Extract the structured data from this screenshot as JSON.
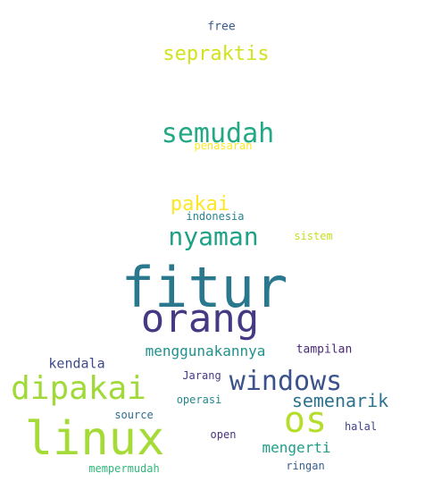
{
  "words": [
    {
      "text": "fitur",
      "color": "#2a788e"
    },
    {
      "text": "orang",
      "color": "#443a83"
    },
    {
      "text": "linux",
      "color": "#a5db36"
    },
    {
      "text": "dipakai",
      "color": "#a0da39"
    },
    {
      "text": "os",
      "color": "#b5de2b"
    },
    {
      "text": "windows",
      "color": "#3b528b"
    },
    {
      "text": "semudah",
      "color": "#22a884"
    },
    {
      "text": "nyaman",
      "color": "#1fa188"
    },
    {
      "text": "sepraktis",
      "color": "#d2e21b"
    },
    {
      "text": "semenarik",
      "color": "#2c728e"
    },
    {
      "text": "pakai",
      "color": "#fde725"
    },
    {
      "text": "menggunakannya",
      "color": "#21918c"
    },
    {
      "text": "mengerti",
      "color": "#1f9e89"
    },
    {
      "text": "kendala",
      "color": "#3e4989"
    },
    {
      "text": "tampilan",
      "color": "#482878"
    },
    {
      "text": "free",
      "color": "#38598c"
    },
    {
      "text": "penasaran",
      "color": "#fde725"
    },
    {
      "text": "indonesia",
      "color": "#25848e"
    },
    {
      "text": "sistem",
      "color": "#c8e020"
    },
    {
      "text": "Jarang",
      "color": "#443983"
    },
    {
      "text": "operasi",
      "color": "#23898e"
    },
    {
      "text": "source",
      "color": "#2e6e8e"
    },
    {
      "text": "halal",
      "color": "#404387"
    },
    {
      "text": "open",
      "color": "#46327e"
    },
    {
      "text": "mempermudah",
      "color": "#32b67a"
    },
    {
      "text": "ringan",
      "color": "#355f8d"
    }
  ]
}
